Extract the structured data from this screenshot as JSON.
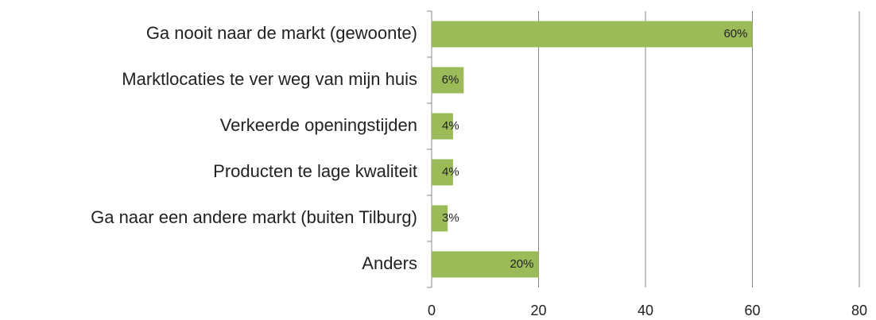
{
  "chart_data": {
    "type": "hbar",
    "categories": [
      "Ga nooit naar de markt (gewoonte)",
      "Marktlocaties te ver weg van mijn huis",
      "Verkeerde openingstijden",
      "Producten te lage kwaliteit",
      "Ga naar een andere markt (buiten Tilburg)",
      "Anders"
    ],
    "values": [
      60,
      6,
      4,
      4,
      3,
      20
    ],
    "value_labels": [
      "60%",
      "6%",
      "4%",
      "4%",
      "3%",
      "20%"
    ],
    "color": "#9bbb59",
    "xlim": [
      0,
      80
    ],
    "xticks": [
      0,
      20,
      40,
      60,
      80
    ],
    "grid": true
  }
}
